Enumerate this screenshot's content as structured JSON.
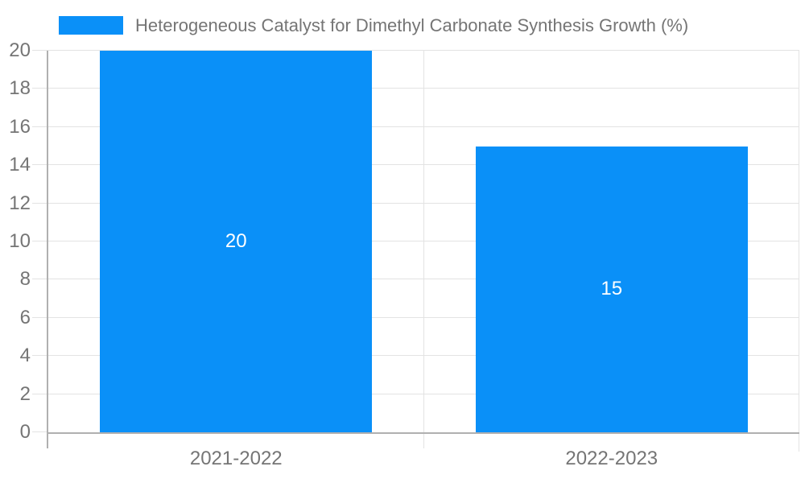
{
  "legend": {
    "label": "Heterogeneous Catalyst for Dimethyl Carbonate Synthesis Growth (%)"
  },
  "chart_data": {
    "type": "bar",
    "title": "Heterogeneous Catalyst for Dimethyl Carbonate Synthesis Growth (%)",
    "categories": [
      "2021-2022",
      "2022-2023"
    ],
    "values": [
      20,
      15
    ],
    "value_labels": [
      "20",
      "15"
    ],
    "xlabel": "",
    "ylabel": "",
    "ylim": [
      0,
      20
    ],
    "yticks": [
      0,
      2,
      4,
      6,
      8,
      10,
      12,
      14,
      16,
      18,
      20
    ],
    "grid": true,
    "legend_position": "top-left",
    "colors": {
      "bar": "#0a90f8",
      "grid": "#e3e3e3",
      "axis": "#b0b0b0",
      "text": "#757575",
      "value_label": "#ffffff",
      "background": "#ffffff"
    }
  }
}
